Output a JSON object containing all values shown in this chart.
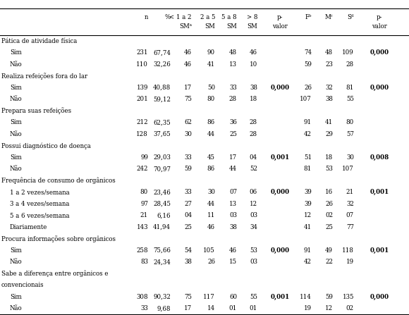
{
  "rows": [
    {
      "label": "Pática de atividade física",
      "indent": 0,
      "data": [
        "",
        "",
        "",
        "",
        "",
        "",
        "",
        "",
        "",
        "",
        ""
      ],
      "section": true
    },
    {
      "label": "Sim",
      "indent": 1,
      "data": [
        "231",
        "67,74",
        "46",
        "90",
        "48",
        "46",
        "",
        "74",
        "48",
        "109",
        "0,000"
      ]
    },
    {
      "label": "Não",
      "indent": 1,
      "data": [
        "110",
        "32,26",
        "46",
        "41",
        "13",
        "10",
        "",
        "59",
        "23",
        "28",
        ""
      ]
    },
    {
      "label": "Realiza refeições fora do lar",
      "indent": 0,
      "data": [
        "",
        "",
        "",
        "",
        "",
        "",
        "",
        "",
        "",
        "",
        ""
      ],
      "section": true
    },
    {
      "label": "Sim",
      "indent": 1,
      "data": [
        "139",
        "40,88",
        "17",
        "50",
        "33",
        "38",
        "0,000",
        "26",
        "32",
        "81",
        "0,000"
      ]
    },
    {
      "label": "Não",
      "indent": 1,
      "data": [
        "201",
        "59,12",
        "75",
        "80",
        "28",
        "18",
        "",
        "107",
        "38",
        "55",
        ""
      ]
    },
    {
      "label": "Prepara suas refeições",
      "indent": 0,
      "data": [
        "",
        "",
        "",
        "",
        "",
        "",
        "",
        "",
        "",
        "",
        ""
      ],
      "section": true
    },
    {
      "label": "Sim",
      "indent": 1,
      "data": [
        "212",
        "62,35",
        "62",
        "86",
        "36",
        "28",
        "",
        "91",
        "41",
        "80",
        ""
      ]
    },
    {
      "label": "Não",
      "indent": 1,
      "data": [
        "128",
        "37,65",
        "30",
        "44",
        "25",
        "28",
        "",
        "42",
        "29",
        "57",
        ""
      ]
    },
    {
      "label": "Possui diagnóstico de doença",
      "indent": 0,
      "data": [
        "",
        "",
        "",
        "",
        "",
        "",
        "",
        "",
        "",
        "",
        ""
      ],
      "section": true
    },
    {
      "label": "Sim",
      "indent": 1,
      "data": [
        "99",
        "29,03",
        "33",
        "45",
        "17",
        "04",
        "0,001",
        "51",
        "18",
        "30",
        "0,008"
      ]
    },
    {
      "label": "Não",
      "indent": 1,
      "data": [
        "242",
        "70,97",
        "59",
        "86",
        "44",
        "52",
        "",
        "81",
        "53",
        "107",
        ""
      ]
    },
    {
      "label": "Frequência de consumo de orgânicos",
      "indent": 0,
      "data": [
        "",
        "",
        "",
        "",
        "",
        "",
        "",
        "",
        "",
        "",
        ""
      ],
      "section": true
    },
    {
      "label": "1 a 2 vezes/semana",
      "indent": 1,
      "data": [
        "80",
        "23,46",
        "33",
        "30",
        "07",
        "06",
        "0,000",
        "39",
        "16",
        "21",
        "0,001"
      ]
    },
    {
      "label": "3 a 4 vezes/semana",
      "indent": 1,
      "data": [
        "97",
        "28,45",
        "27",
        "44",
        "13",
        "12",
        "",
        "39",
        "26",
        "32",
        ""
      ]
    },
    {
      "label": "5 a 6 vezes/semana",
      "indent": 1,
      "data": [
        "21",
        "6,16",
        "04",
        "11",
        "03",
        "03",
        "",
        "12",
        "02",
        "07",
        ""
      ]
    },
    {
      "label": "Diariamente",
      "indent": 1,
      "data": [
        "143",
        "41,94",
        "25",
        "46",
        "38",
        "34",
        "",
        "41",
        "25",
        "77",
        ""
      ]
    },
    {
      "label": "Procura informações sobre orgânicos",
      "indent": 0,
      "data": [
        "",
        "",
        "",
        "",
        "",
        "",
        "",
        "",
        "",
        "",
        ""
      ],
      "section": true
    },
    {
      "label": "Sim",
      "indent": 1,
      "data": [
        "258",
        "75,66",
        "54",
        "105",
        "46",
        "53",
        "0,000",
        "91",
        "49",
        "118",
        "0,001"
      ]
    },
    {
      "label": "Não",
      "indent": 1,
      "data": [
        "83",
        "24,34",
        "38",
        "26",
        "15",
        "03",
        "",
        "42",
        "22",
        "19",
        ""
      ]
    },
    {
      "label": "Sabe a diferença entre orgânicos e",
      "indent": 0,
      "data": [
        "",
        "",
        "",
        "",
        "",
        "",
        "",
        "",
        "",
        "",
        ""
      ],
      "section": true
    },
    {
      "label": "convencionais",
      "indent": 0,
      "data": [
        "",
        "",
        "",
        "",
        "",
        "",
        "",
        "",
        "",
        "",
        ""
      ],
      "section": true
    },
    {
      "label": "Sim",
      "indent": 1,
      "data": [
        "308",
        "90,32",
        "75",
        "117",
        "60",
        "55",
        "0,001",
        "114",
        "59",
        "135",
        "0,000"
      ]
    },
    {
      "label": "Não",
      "indent": 1,
      "data": [
        "33",
        "9,68",
        "17",
        "14",
        "01",
        "01",
        "",
        "19",
        "12",
        "02",
        ""
      ]
    }
  ],
  "section_labels": {
    "0": "Pática de atividade física",
    "1": "rática de atividade física"
  },
  "bold_values": [
    "0,000",
    "0,001",
    "0,008"
  ],
  "fig_width": 5.8,
  "fig_height": 4.47,
  "dpi": 100,
  "font_size": 6.2,
  "bg_color": "white"
}
